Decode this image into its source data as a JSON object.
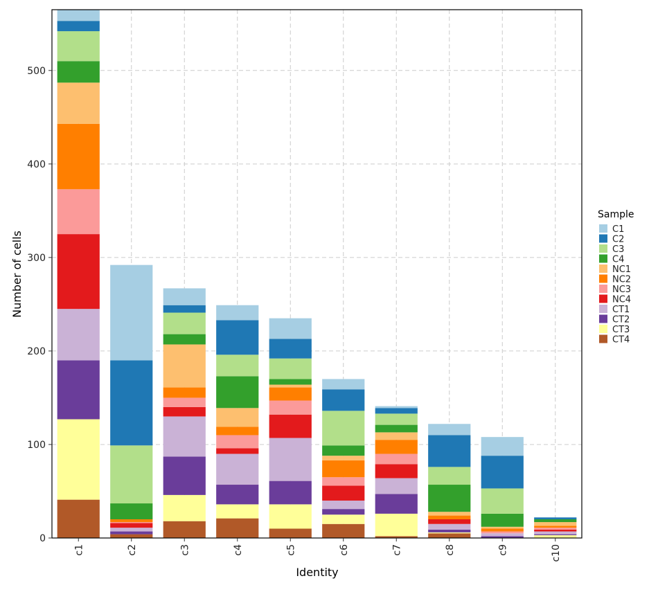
{
  "chart_data": {
    "type": "bar",
    "stacked": true,
    "xlabel": "Identity",
    "ylabel": "Number of cells",
    "ylim": [
      0,
      565
    ],
    "yticks": [
      0,
      100,
      200,
      300,
      400,
      500
    ],
    "grid": true,
    "legend": {
      "title": "Sample",
      "placement": "right"
    },
    "categories": [
      "c1",
      "c2",
      "c3",
      "c4",
      "c5",
      "c6",
      "c7",
      "c8",
      "c9",
      "c10"
    ],
    "series": [
      {
        "name": "C1",
        "color": "#A6CEE3",
        "values": [
          12,
          102,
          18,
          16,
          22,
          11,
          2,
          12,
          20,
          0
        ]
      },
      {
        "name": "C2",
        "color": "#1F78B4",
        "values": [
          11,
          91,
          8,
          37,
          21,
          23,
          6,
          34,
          35,
          2
        ]
      },
      {
        "name": "C3",
        "color": "#B2DF8A",
        "values": [
          32,
          62,
          23,
          23,
          22,
          37,
          12,
          19,
          27,
          0
        ]
      },
      {
        "name": "C4",
        "color": "#33A02C",
        "values": [
          23,
          17,
          11,
          34,
          6,
          11,
          8,
          29,
          14,
          3
        ]
      },
      {
        "name": "NC1",
        "color": "#FDBF6F",
        "values": [
          44,
          0,
          46,
          20,
          3,
          5,
          8,
          4,
          2,
          4
        ]
      },
      {
        "name": "NC2",
        "color": "#FF7F00",
        "values": [
          70,
          3,
          11,
          9,
          14,
          18,
          15,
          4,
          3,
          2
        ]
      },
      {
        "name": "NC3",
        "color": "#FB9A99",
        "values": [
          48,
          1,
          10,
          14,
          15,
          9,
          11,
          0,
          2,
          2
        ]
      },
      {
        "name": "NC4",
        "color": "#E31A1C",
        "values": [
          80,
          5,
          10,
          6,
          25,
          16,
          15,
          5,
          0,
          2
        ]
      },
      {
        "name": "CT1",
        "color": "#CAB2D6",
        "values": [
          55,
          4,
          43,
          33,
          46,
          9,
          17,
          6,
          3,
          3
        ]
      },
      {
        "name": "CT2",
        "color": "#6A3D9A",
        "values": [
          63,
          3,
          41,
          21,
          25,
          6,
          21,
          3,
          2,
          1
        ]
      },
      {
        "name": "CT3",
        "color": "#FFFF99",
        "values": [
          86,
          0,
          28,
          15,
          26,
          10,
          24,
          1,
          0,
          3
        ]
      },
      {
        "name": "CT4",
        "color": "#B15928",
        "values": [
          41,
          4,
          18,
          21,
          10,
          15,
          2,
          5,
          0,
          0
        ]
      }
    ]
  }
}
